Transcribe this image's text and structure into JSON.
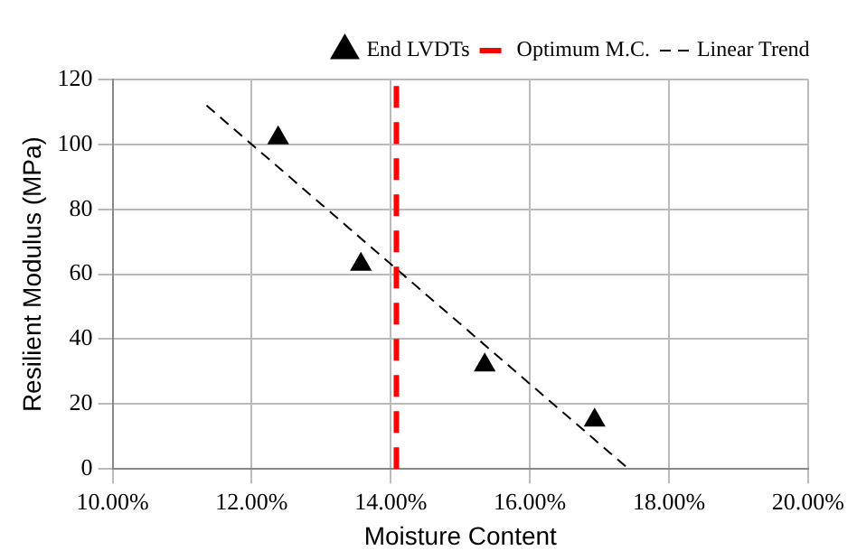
{
  "chart_data": {
    "type": "scatter",
    "xlabel": "Moisture Content",
    "ylabel": "Resilient Modulus (MPa)",
    "xlim": [
      10,
      20
    ],
    "ylim": [
      0,
      120
    ],
    "xticks": [
      {
        "value": 10,
        "label": "10.00%"
      },
      {
        "value": 12,
        "label": "12.00%"
      },
      {
        "value": 14,
        "label": "14.00%"
      },
      {
        "value": 16,
        "label": "16.00%"
      },
      {
        "value": 18,
        "label": "18.00%"
      },
      {
        "value": 20,
        "label": "20.00%"
      }
    ],
    "yticks": [
      0,
      20,
      40,
      60,
      80,
      100,
      120
    ],
    "grid": true,
    "legend": "top right",
    "series": [
      {
        "name": "End LVDTs",
        "color": "#000000",
        "marker": "triangle",
        "x": [
          12.38,
          13.57,
          15.35,
          16.93
        ],
        "values": [
          102,
          63,
          32,
          15
        ]
      },
      {
        "name": "Linear Trend",
        "color": "#000000",
        "type": "line",
        "line_style": "dashed",
        "marker": "none",
        "x": [
          11.35,
          17.42
        ],
        "values": [
          112,
          0
        ]
      }
    ],
    "ref_lines": [
      {
        "axis": "x",
        "value": 14.08,
        "label": "Optimum M.C.",
        "color": "#ff0000",
        "line_style": "dashed"
      }
    ]
  }
}
